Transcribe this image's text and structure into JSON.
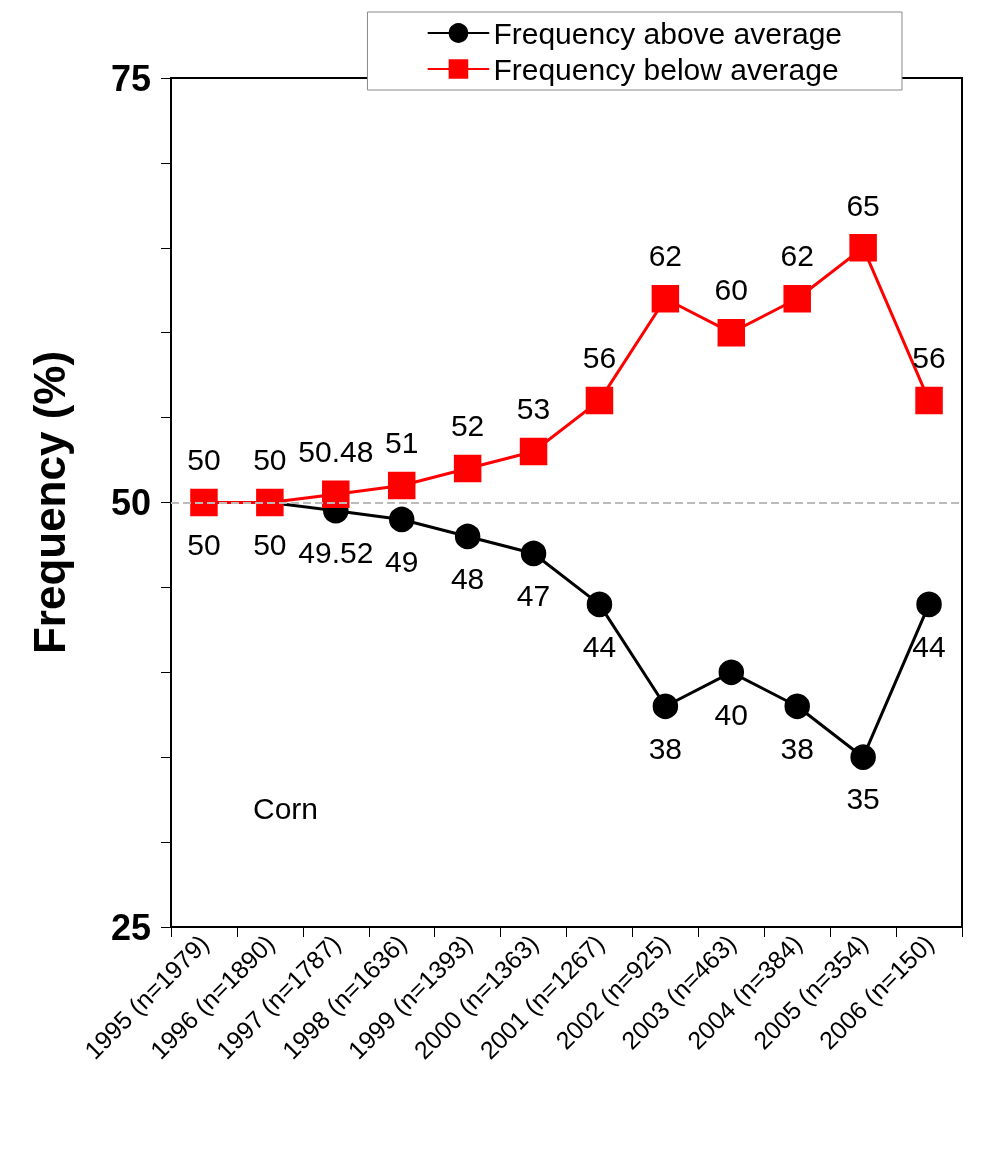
{
  "chart_data": {
    "type": "line",
    "ylabel": "Frequency (%)",
    "categories": [
      "1995 (n=1979)",
      "1996 (n=1890)",
      "1997 (n=1787)",
      "1998 (n=1636)",
      "1999 (n=1393)",
      "2000 (n=1363)",
      "2001 (n=1267)",
      "2002 (n=925)",
      "2003 (n=463)",
      "2004 (n=384)",
      "2005 (n=354)",
      "2006 (n=150)"
    ],
    "series": [
      {
        "name": "Frequency above average",
        "color": "#000000",
        "marker": "circle",
        "values": [
          50,
          50,
          49.52,
          49,
          48,
          47,
          44,
          38,
          40,
          38,
          35,
          44
        ]
      },
      {
        "name": "Frequency below average",
        "color": "#ff0000",
        "marker": "square",
        "values": [
          50,
          50,
          50.48,
          51,
          52,
          53,
          56,
          62,
          60,
          62,
          65,
          56
        ]
      }
    ],
    "ylim": [
      25,
      75
    ],
    "yticks": [
      25,
      {
        "value": 30,
        "label": null
      },
      {
        "value": 35,
        "label": null
      },
      {
        "value": 40,
        "label": null
      },
      {
        "value": 45,
        "label": null
      },
      50,
      {
        "value": 55,
        "label": null
      },
      {
        "value": 60,
        "label": null
      },
      {
        "value": 65,
        "label": null
      },
      {
        "value": 70,
        "label": null
      },
      75
    ],
    "ref_lines": [
      {
        "axis": "y",
        "value": 50,
        "color": "#bbbbbb",
        "line_style": "dashed"
      }
    ],
    "annotations": [
      "Corn"
    ],
    "data_labels": true,
    "grid": false,
    "legend": "top right",
    "line_style": "solid"
  }
}
